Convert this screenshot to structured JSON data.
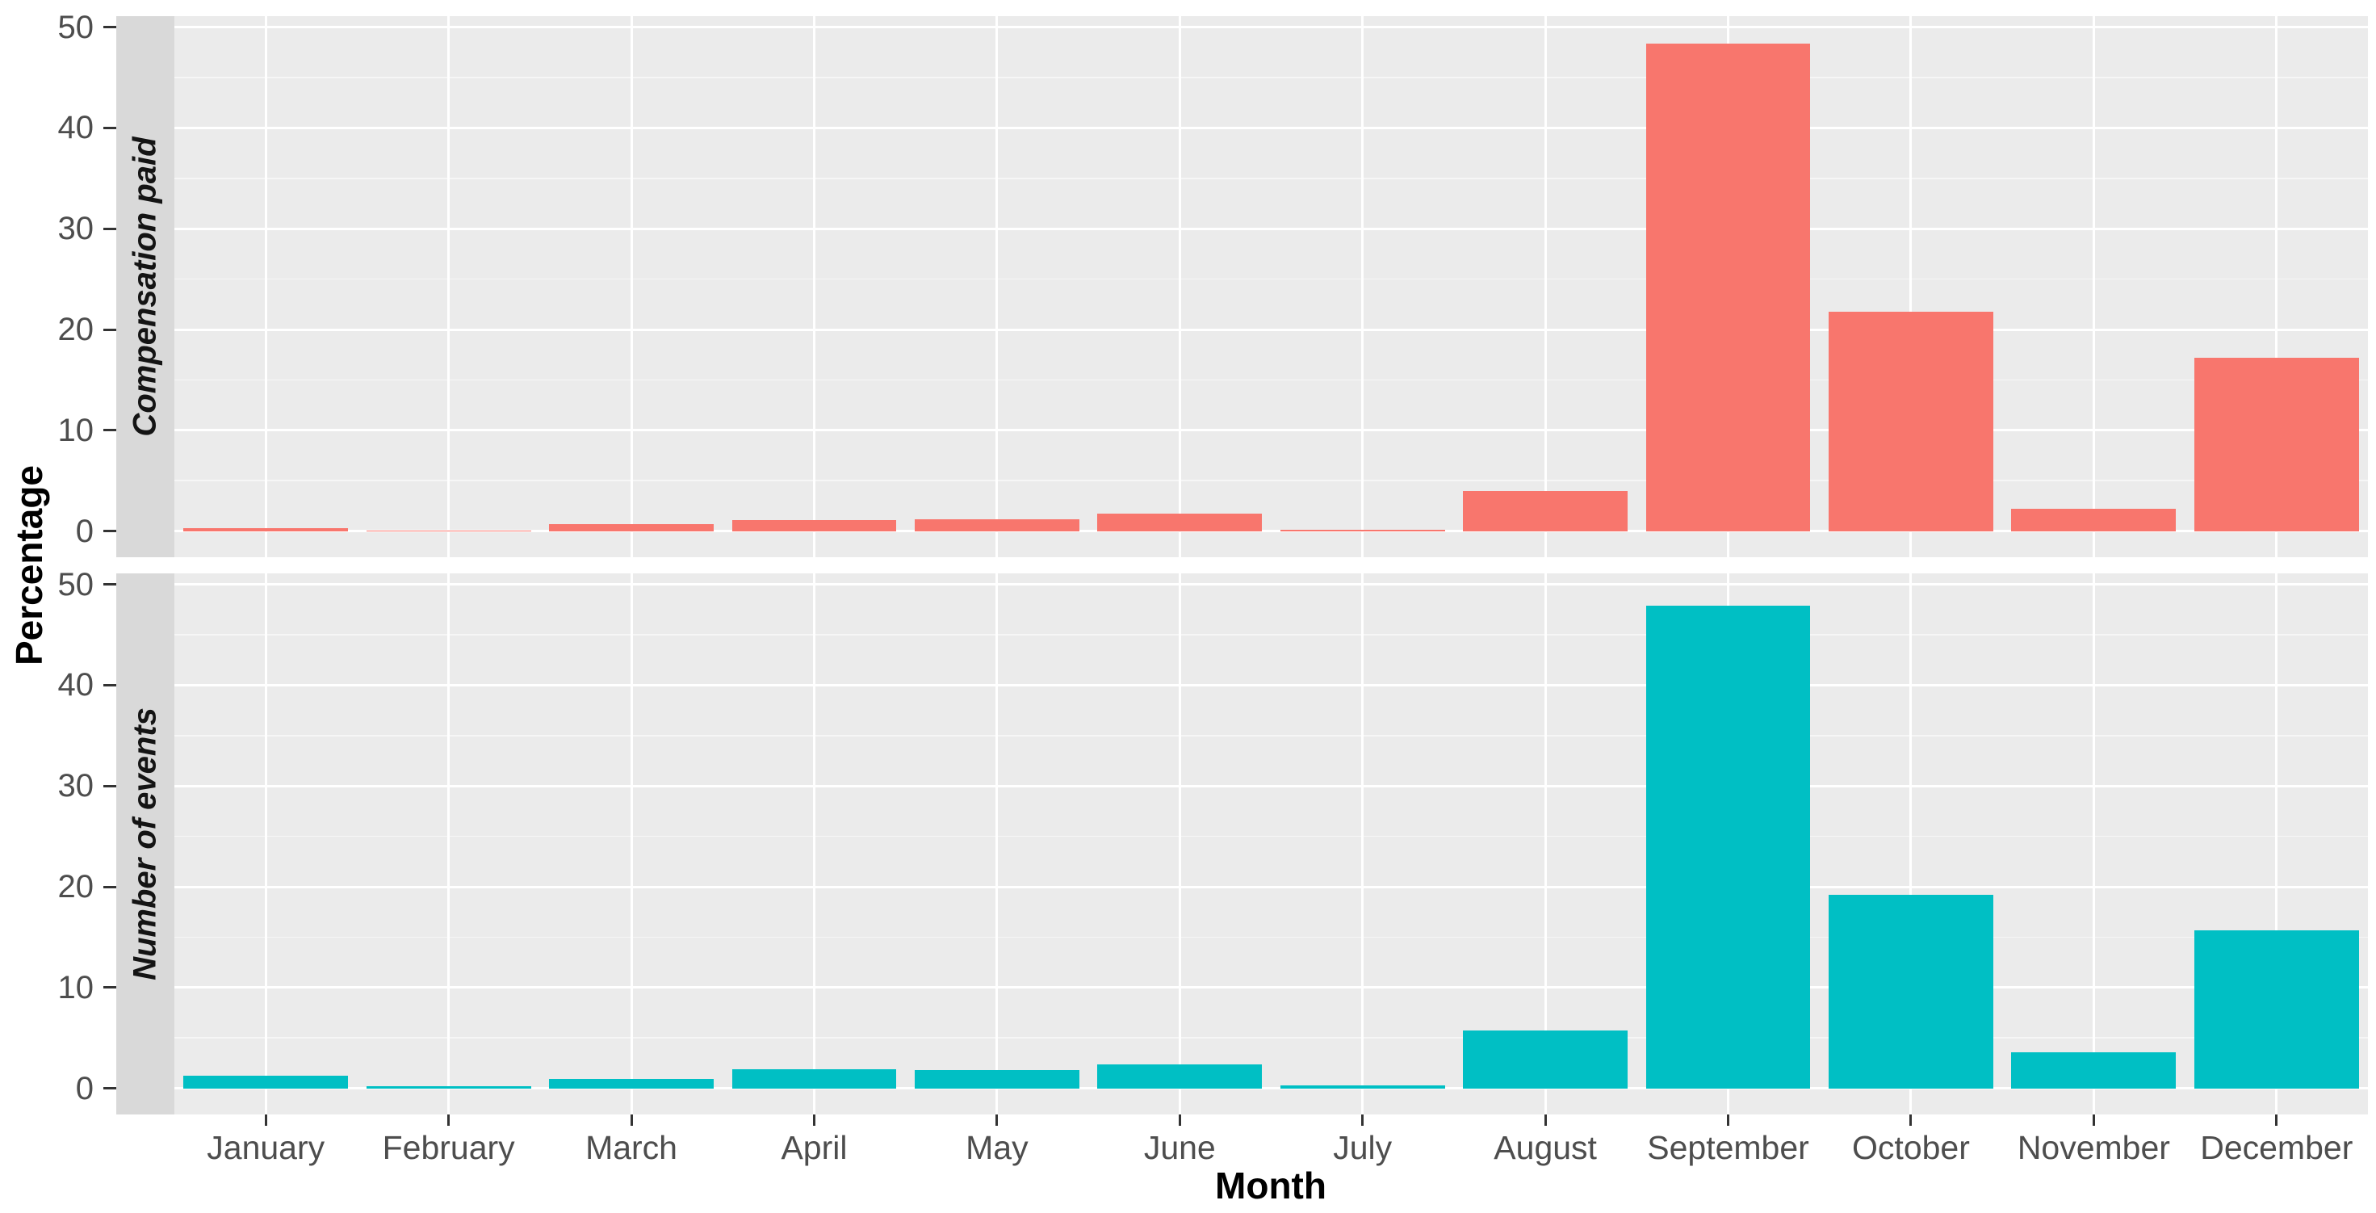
{
  "chart_data": {
    "type": "bar",
    "title": "",
    "xlabel": "Month",
    "ylabel": "Percentage",
    "categories": [
      "January",
      "February",
      "March",
      "April",
      "May",
      "June",
      "July",
      "August",
      "September",
      "October",
      "November",
      "December"
    ],
    "facets": [
      {
        "label": "Compensation paid",
        "color": "#F8766D",
        "values": [
          0.25,
          0.05,
          0.7,
          1.1,
          1.2,
          1.7,
          0.1,
          4.0,
          48.4,
          21.8,
          2.2,
          17.2
        ]
      },
      {
        "label": "Number of events",
        "color": "#00BFC4",
        "values": [
          1.25,
          0.2,
          0.9,
          1.9,
          1.8,
          2.4,
          0.25,
          5.7,
          47.9,
          19.2,
          3.6,
          15.7
        ]
      }
    ],
    "y_ticks": [
      0,
      10,
      20,
      30,
      40,
      50
    ],
    "y_minor_ticks": [
      5,
      15,
      25,
      35,
      45
    ],
    "ylim": [
      -2.6,
      51.1
    ],
    "legend": "none",
    "grid": true,
    "bar_width_fraction": 0.9,
    "colors": {
      "panel_background": "#EBEBEB",
      "strip_background": "#D9D9D9",
      "grid_major": "#FFFFFF",
      "grid_minor": "rgba(255,255,255,0.55)",
      "tick_mark": "#333333",
      "tick_label": "#4D4D4D",
      "axis_title": "#000000"
    }
  }
}
